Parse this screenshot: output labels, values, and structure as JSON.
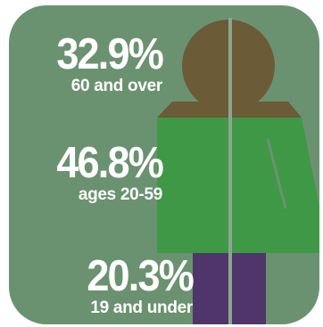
{
  "chart_data": {
    "type": "pictogram",
    "categories": [
      "60 and over",
      "ages 20-59",
      "19 and under"
    ],
    "values": [
      32.9,
      46.8,
      20.3
    ],
    "value_labels": [
      "32.9%",
      "46.8%",
      "20.3%"
    ],
    "unit": "%",
    "colors": {
      "background": "#6b9270",
      "60 and over": "#6b5b36",
      "ages 20-59": "#3f9846",
      "19 and under": "#4f356a",
      "divider": "#8aa88e",
      "text": "#ffffff"
    }
  },
  "stats": [
    {
      "pct": "32.9%",
      "label": "60 and over"
    },
    {
      "pct": "46.8%",
      "label": "ages 20-59"
    },
    {
      "pct": "20.3%",
      "label": "19 and under"
    }
  ]
}
